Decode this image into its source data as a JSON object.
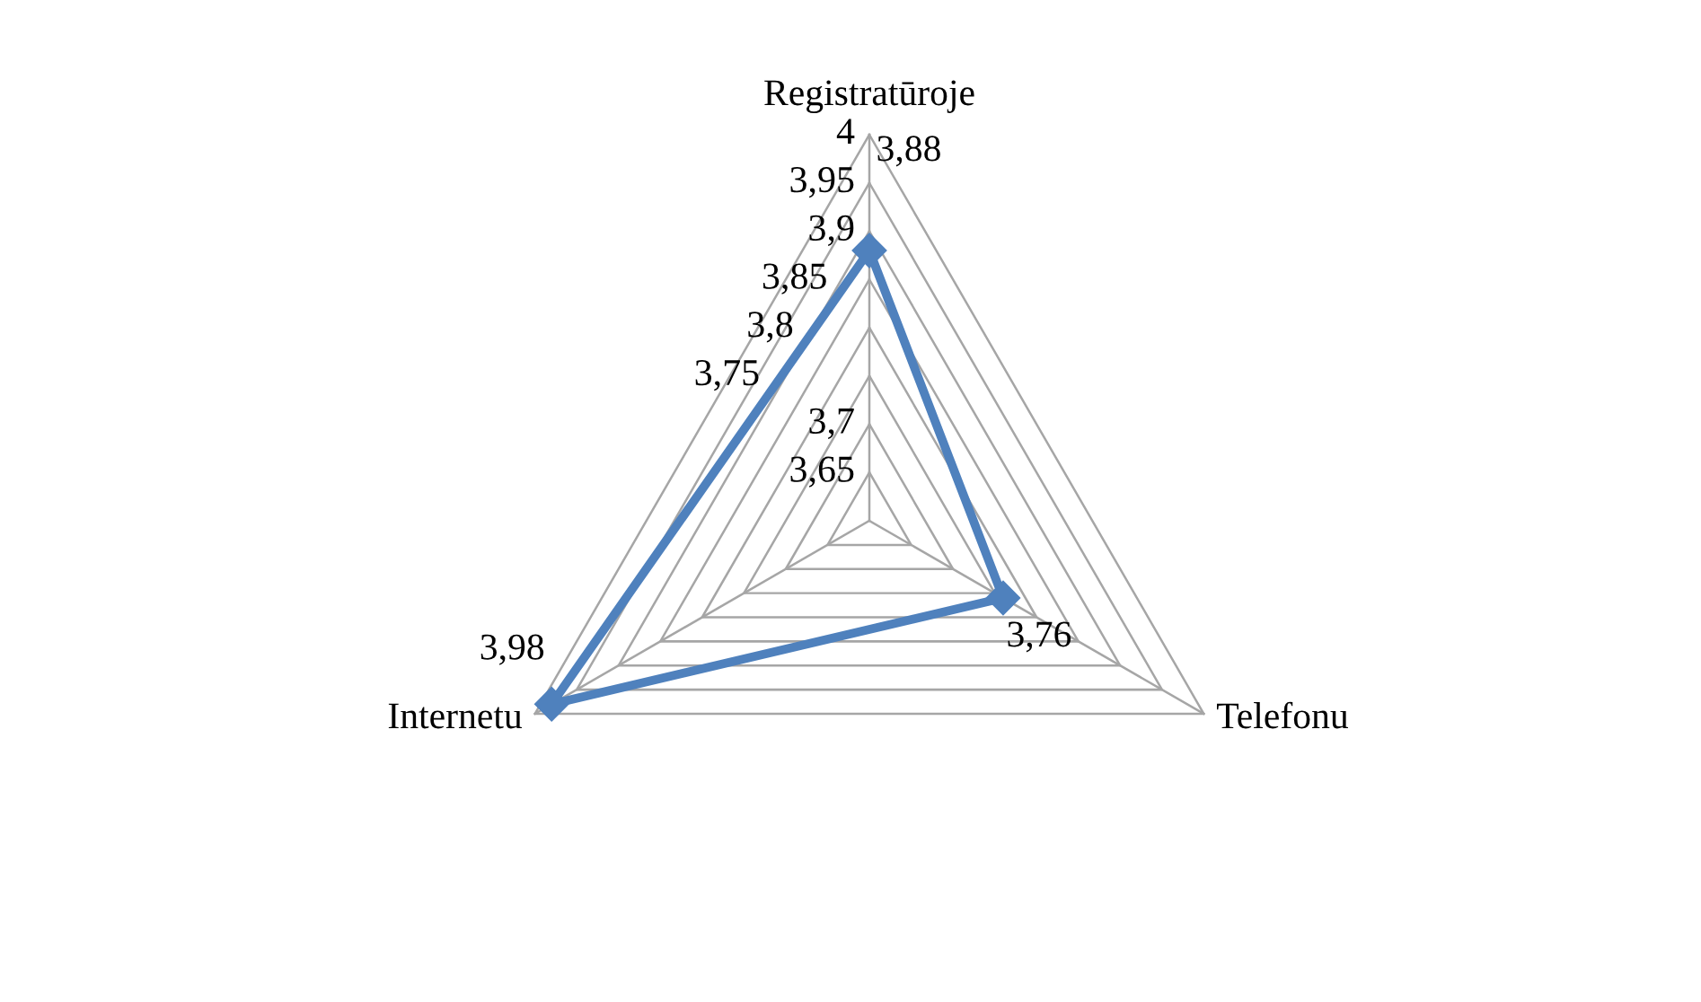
{
  "chart_data": {
    "type": "radar",
    "categories": [
      "Registratūroje",
      "Telefonu",
      "Internetu"
    ],
    "series": [
      {
        "color": "#4f81bd",
        "values": [
          3.88,
          3.76,
          3.98
        ],
        "value_labels": [
          "3,88",
          "3,76",
          "3,98"
        ]
      }
    ],
    "ylim": [
      3.6,
      4
    ],
    "yticks": [
      {
        "value": 3.65,
        "label": "3,65"
      },
      {
        "value": 3.7,
        "label": "3,7"
      },
      {
        "value": 3.75,
        "label": "3,75"
      },
      {
        "value": 3.8,
        "label": "3,8"
      },
      {
        "value": 3.85,
        "label": "3,85"
      },
      {
        "value": 3.9,
        "label": "3,9"
      },
      {
        "value": 3.95,
        "label": "3,95"
      },
      {
        "value": 4,
        "label": "4"
      }
    ],
    "grid": true,
    "marker": "diamond",
    "line_style": "solid"
  }
}
